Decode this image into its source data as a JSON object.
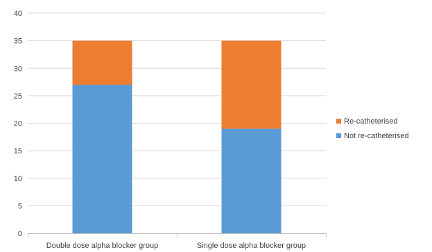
{
  "chart_data": {
    "type": "bar",
    "stacked": true,
    "categories": [
      "Double dose alpha blocker group",
      "Single dose alpha blocker group"
    ],
    "series": [
      {
        "name": "Not re-catheterised",
        "values": [
          27,
          19
        ],
        "color": "#5b9bd5"
      },
      {
        "name": "Re-catheterised",
        "values": [
          8,
          16
        ],
        "color": "#ed7d31"
      }
    ],
    "title": "",
    "xlabel": "",
    "ylabel": "",
    "ylim": [
      0,
      40
    ],
    "yticks": [
      0,
      5,
      10,
      15,
      20,
      25,
      30,
      35,
      40
    ],
    "grid": true,
    "legend_position": "right"
  }
}
